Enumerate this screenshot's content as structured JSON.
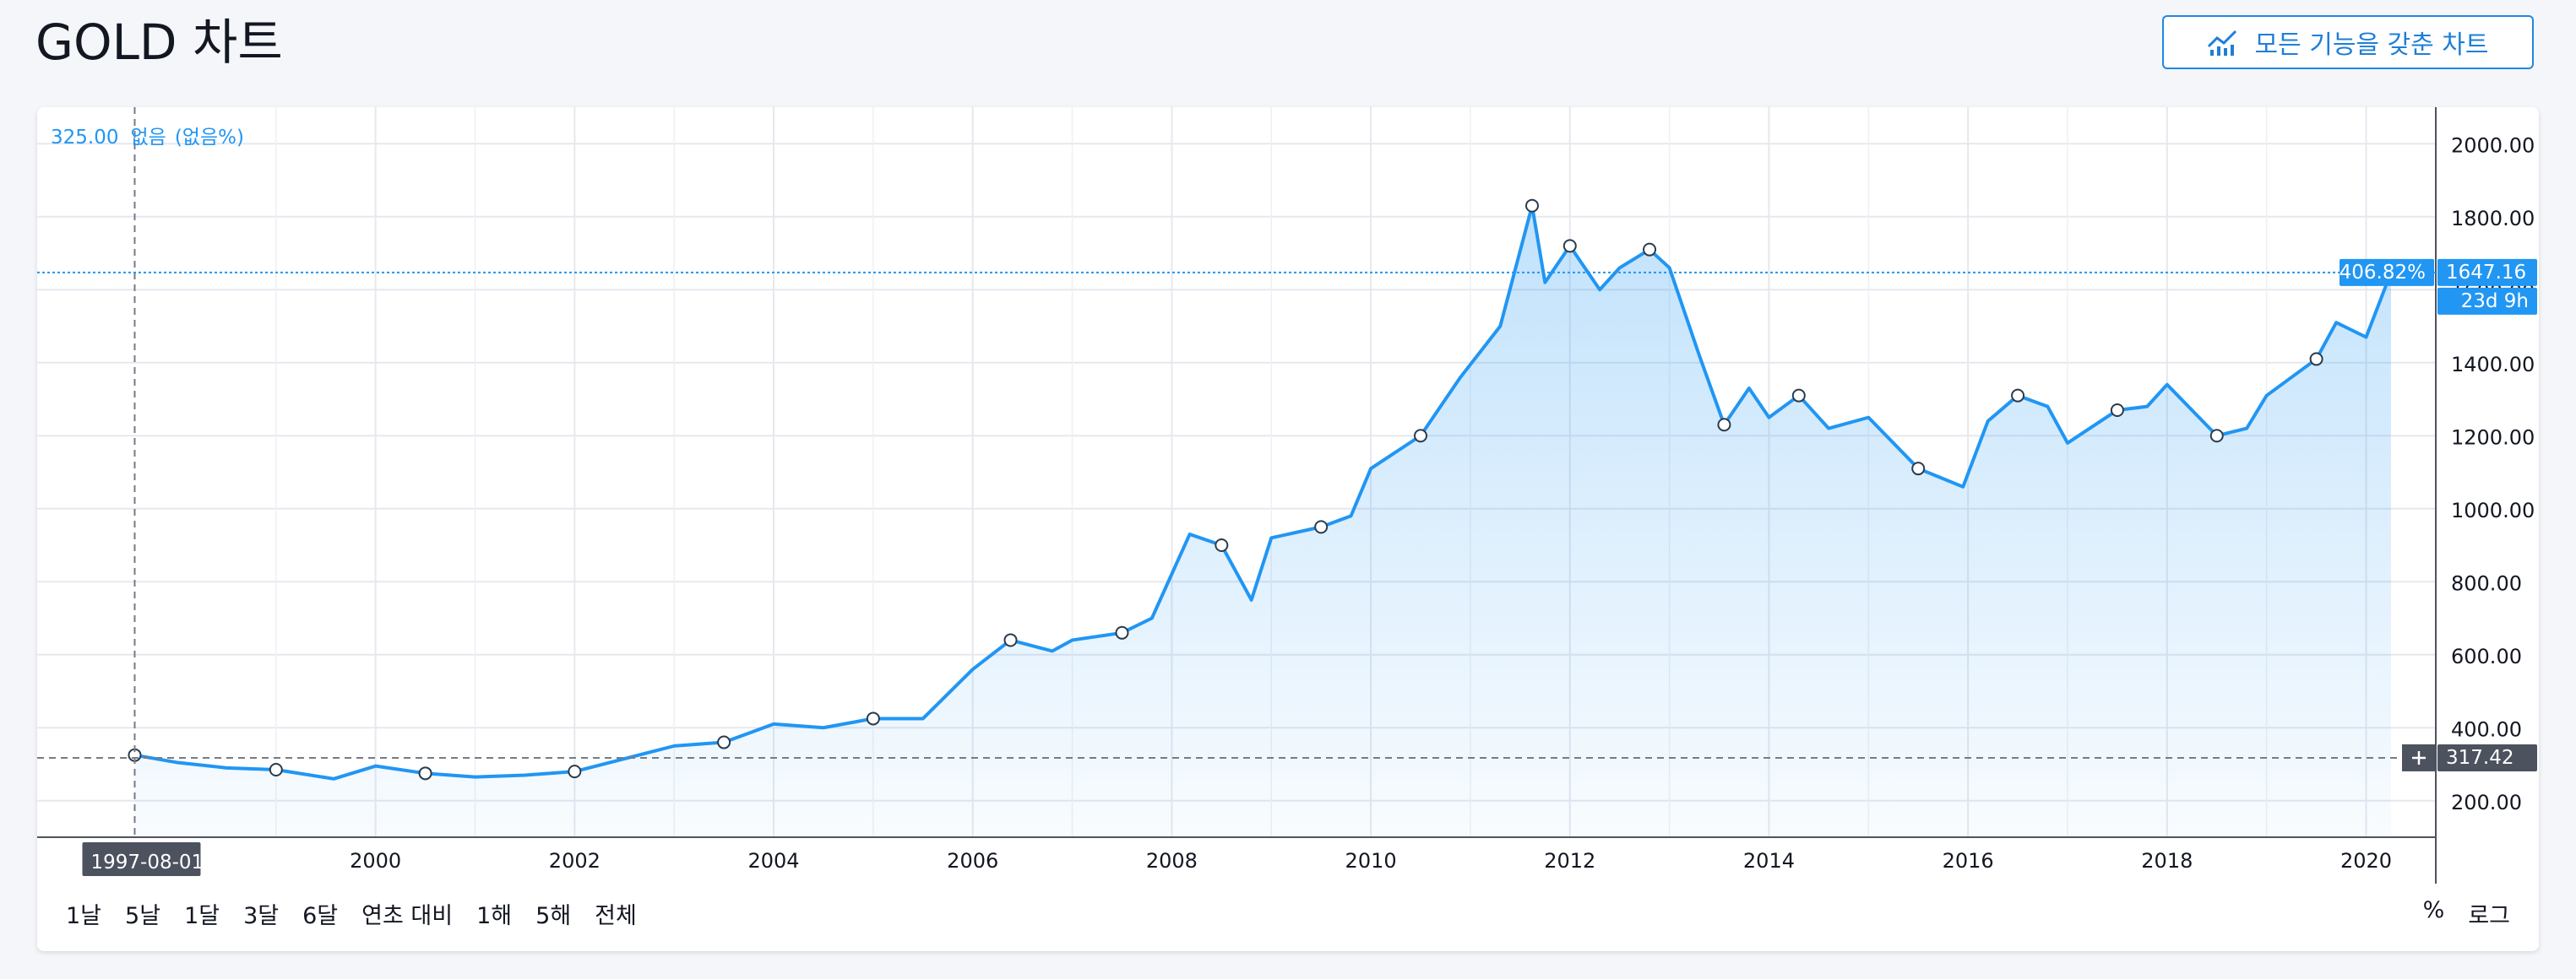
{
  "header": {
    "title": "GOLD 차트",
    "full_features_button": "모든 기능을 갖춘 차트"
  },
  "legend": {
    "value": "325.00",
    "change": "없음",
    "change_pct": "(없음%)"
  },
  "price_label": {
    "percent": "406.82%",
    "price": "1647.16",
    "countdown": "23d 9h"
  },
  "crosshair": {
    "price": "317.42",
    "date": "1997-08-01"
  },
  "range_buttons": [
    "1날",
    "5날",
    "1달",
    "3달",
    "6달",
    "연초 대비",
    "1해",
    "5해",
    "전체"
  ],
  "scale_buttons": [
    "%",
    "로그"
  ],
  "colors": {
    "line": "#2196f3",
    "label_bg": "#2196f3",
    "crosshair_label_bg": "#4c525e"
  },
  "chart_data": {
    "type": "area",
    "series": [
      {
        "x": [
          1997.58,
          1998.0,
          1998.5,
          1999.0,
          1999.58,
          2000.0,
          2000.5,
          2001.0,
          2001.5,
          2002.0,
          2002.5,
          2003.0,
          2003.5,
          2004.0,
          2004.5,
          2005.0,
          2005.5,
          2006.0,
          2006.38,
          2006.8,
          2007.0,
          2007.5,
          2007.8,
          2008.18,
          2008.5,
          2008.8,
          2009.0,
          2009.5,
          2009.8,
          2010.0,
          2010.5,
          2010.9,
          2011.3,
          2011.62,
          2011.75,
          2011.9,
          2012.0,
          2012.3,
          2012.5,
          2012.8,
          2013.0,
          2013.3,
          2013.55,
          2013.8,
          2014.0,
          2014.3,
          2014.6,
          2015.0,
          2015.5,
          2015.95,
          2016.2,
          2016.5,
          2016.8,
          2017.0,
          2017.5,
          2017.8,
          2018.0,
          2018.5,
          2018.8,
          2019.0,
          2019.5,
          2019.7,
          2020.0,
          2020.25
        ],
        "values": [
          325,
          305,
          290,
          285,
          260,
          295,
          275,
          265,
          270,
          280,
          315,
          350,
          360,
          410,
          400,
          425,
          425,
          560,
          640,
          610,
          640,
          660,
          700,
          930,
          900,
          750,
          920,
          950,
          980,
          1110,
          1200,
          1360,
          1500,
          1830,
          1620,
          1680,
          1720,
          1600,
          1660,
          1710,
          1660,
          1420,
          1230,
          1330,
          1250,
          1310,
          1220,
          1250,
          1110,
          1060,
          1240,
          1310,
          1280,
          1180,
          1270,
          1280,
          1340,
          1200,
          1220,
          1310,
          1410,
          1510,
          1470,
          1647.16
        ]
      }
    ],
    "x_tick_labels": [
      "2000",
      "2002",
      "2004",
      "2006",
      "2008",
      "2010",
      "2012",
      "2014",
      "2016",
      "2018",
      "2020"
    ],
    "y_tick_labels": [
      "200.00",
      "400.00",
      "600.00",
      "800.00",
      "1000.00",
      "1200.00",
      "1400.00",
      "1600.00",
      "1800.00",
      "2000.00"
    ],
    "xlim": [
      1996.6,
      2020.7
    ],
    "ylim": [
      100,
      2100
    ],
    "grid": true,
    "last_price_line": 1647.16,
    "crosshair_y": 317.42,
    "crosshair_x": 1997.58
  }
}
